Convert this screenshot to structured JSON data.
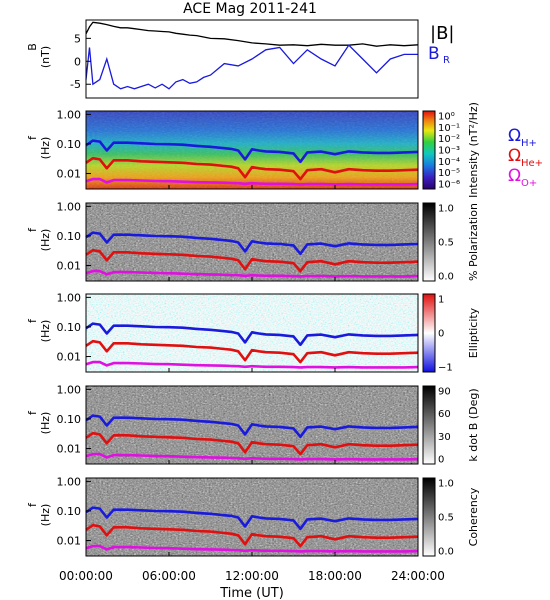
{
  "title": "ACE Mag 2011-241",
  "xlabel": "Time (UT)",
  "colors": {
    "B_total": "#000000",
    "B_R": "#1a1adc",
    "Omega_H": "#1a1adc",
    "Omega_He": "#e01010",
    "Omega_O": "#e010e0"
  },
  "chart_data": [
    {
      "type": "line",
      "ylabel": "B (nT)",
      "yticks": [
        "5",
        "0",
        "-5"
      ],
      "ylim": [
        -8,
        9
      ],
      "x_range_hours": [
        0,
        24
      ],
      "xtick_labels": [
        "00:00:00",
        "06:00:00",
        "12:00:00",
        "18:00:00",
        "24:00:00"
      ],
      "legend": [
        "|B|",
        "B_R"
      ],
      "series": [
        {
          "name": "|B|",
          "x": [
            0,
            0.25,
            0.5,
            1,
            1.5,
            2,
            2.5,
            3,
            3.5,
            4,
            4.5,
            5,
            5.5,
            6,
            6.5,
            7,
            7.5,
            8,
            8.5,
            9,
            10,
            11,
            12,
            13,
            14,
            15,
            16,
            17,
            18,
            19,
            20,
            21,
            22,
            23,
            24
          ],
          "values": [
            6,
            7.5,
            8.5,
            8.3,
            8.0,
            7.6,
            7.3,
            7.3,
            7.1,
            6.9,
            6.7,
            6.6,
            6.5,
            6.4,
            6.1,
            5.9,
            5.7,
            5.6,
            5.3,
            5.0,
            4.9,
            4.5,
            4.0,
            3.8,
            3.5,
            3.6,
            3.4,
            3.7,
            3.5,
            3.5,
            3.8,
            3.3,
            3.6,
            3.4,
            3.6
          ]
        },
        {
          "name": "B_R",
          "x": [
            0,
            0.25,
            0.5,
            1,
            1.5,
            2,
            2.5,
            3,
            3.5,
            4,
            4.5,
            5,
            5.5,
            6,
            6.5,
            7,
            7.5,
            8,
            8.5,
            9,
            10,
            11,
            12,
            13,
            14,
            15,
            16,
            17,
            18,
            19,
            20,
            21,
            22,
            23,
            24
          ],
          "values": [
            -4,
            3,
            -5,
            -4,
            0.5,
            -5,
            -6,
            -5.5,
            -6,
            -5.5,
            -5,
            -5.8,
            -5,
            -6,
            -4.5,
            -4,
            -4.8,
            -4.5,
            -3.5,
            -3,
            -0.5,
            -1,
            0.5,
            2.5,
            3,
            -0.5,
            2.5,
            0.5,
            -1,
            3.5,
            0.5,
            -2.5,
            0.5,
            1.5,
            1.5
          ]
        }
      ]
    },
    {
      "type": "heatmap",
      "ylabel": "f (Hz)",
      "yticks": [
        "1.00",
        "0.10",
        "0.01"
      ],
      "colorbar_label": "Intensity (nT²/Hz)",
      "colorbar_ticks": [
        "10⁰",
        "10⁻¹",
        "10⁻²",
        "10⁻³",
        "10⁻⁴",
        "10⁻⁵",
        "10⁻⁶"
      ],
      "colormap": "rainbow",
      "legend": [
        "Ω",
        "Ω",
        "Ω"
      ],
      "legend_sub": [
        "H+",
        "He+",
        "O+"
      ]
    },
    {
      "type": "heatmap",
      "ylabel": "f (Hz)",
      "yticks": [
        "1.00",
        "0.10",
        "0.01"
      ],
      "colorbar_label": "% Polarization",
      "colorbar_ticks": [
        "1.0",
        "0.5",
        "0.0"
      ],
      "colormap": "gray"
    },
    {
      "type": "heatmap",
      "ylabel": "f (Hz)",
      "yticks": [
        "1.00",
        "0.10",
        "0.01"
      ],
      "colorbar_label": "Ellipticity",
      "colorbar_ticks": [
        "1",
        "0",
        "−1"
      ],
      "colormap": "blue-white-red"
    },
    {
      "type": "heatmap",
      "ylabel": "f (Hz)",
      "yticks": [
        "1.00",
        "0.10",
        "0.01"
      ],
      "colorbar_label": "k dot B (Deg)",
      "colorbar_ticks": [
        "90",
        "60",
        "30",
        "0"
      ],
      "colormap": "gray"
    },
    {
      "type": "heatmap",
      "ylabel": "f (Hz)",
      "yticks": [
        "1.00",
        "0.10",
        "0.01"
      ],
      "colorbar_label": "Coherency",
      "colorbar_ticks": [
        "1.0",
        "0.5",
        "0.0"
      ],
      "colormap": "gray"
    }
  ],
  "gyrofrequency_curves_hz": {
    "x": [
      0,
      0.5,
      1,
      1.5,
      2,
      3,
      4,
      5,
      6,
      7,
      8,
      9,
      10,
      10.5,
      11,
      11.5,
      12,
      12.5,
      13,
      14,
      15,
      15.5,
      16,
      17,
      18,
      19,
      20,
      21,
      22,
      23,
      24
    ],
    "H+": [
      0.09,
      0.13,
      0.12,
      0.06,
      0.11,
      0.11,
      0.105,
      0.1,
      0.098,
      0.094,
      0.086,
      0.08,
      0.072,
      0.068,
      0.06,
      0.03,
      0.066,
      0.06,
      0.056,
      0.054,
      0.048,
      0.025,
      0.052,
      0.055,
      0.045,
      0.056,
      0.052,
      0.05,
      0.05,
      0.052,
      0.054
    ],
    "He+": [
      0.023,
      0.033,
      0.03,
      0.015,
      0.028,
      0.028,
      0.026,
      0.025,
      0.024,
      0.023,
      0.021,
      0.02,
      0.018,
      0.017,
      0.015,
      0.0075,
      0.0165,
      0.015,
      0.014,
      0.0135,
      0.012,
      0.0065,
      0.013,
      0.014,
      0.011,
      0.014,
      0.013,
      0.0125,
      0.0125,
      0.013,
      0.0135
    ],
    "O+": [
      0.0055,
      0.0065,
      0.0065,
      0.005,
      0.006,
      0.006,
      0.0058,
      0.0056,
      0.0055,
      0.0053,
      0.0051,
      0.005,
      0.0049,
      0.0048,
      0.0047,
      0.0045,
      0.0047,
      0.0046,
      0.0045,
      0.0045,
      0.0044,
      0.0043,
      0.0044,
      0.0044,
      0.0043,
      0.0044,
      0.0043,
      0.0043,
      0.0043,
      0.0043,
      0.0044
    ]
  }
}
